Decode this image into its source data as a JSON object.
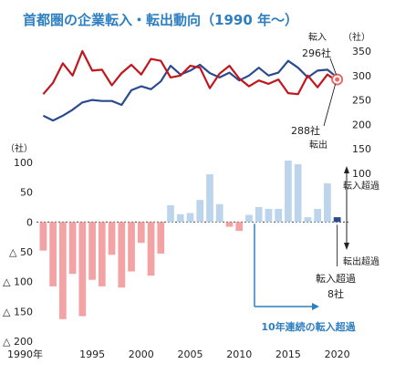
{
  "chart_data": {
    "type": "line+bar",
    "title": "首都圏の企業転入・転出動向（1990 年～）",
    "x": [
      1990,
      1991,
      1992,
      1993,
      1994,
      1995,
      1996,
      1997,
      1998,
      1999,
      2000,
      2001,
      2002,
      2003,
      2004,
      2005,
      2006,
      2007,
      2008,
      2009,
      2010,
      2011,
      2012,
      2013,
      2014,
      2015,
      2016,
      2017,
      2018,
      2019,
      2020
    ],
    "x_tick_labels": [
      "1990年",
      "1995",
      "2000",
      "2005",
      "2010",
      "2015",
      "2020"
    ],
    "x_tick_values": [
      1990,
      1995,
      2000,
      2005,
      2010,
      2015,
      2020
    ],
    "upper_axis": {
      "unit": "（社）",
      "ticks": [
        "100",
        "150",
        "200",
        "250",
        "300",
        "350"
      ],
      "tick_values": [
        100,
        150,
        200,
        250,
        300,
        350
      ],
      "ylim": [
        100,
        350
      ]
    },
    "lower_axis": {
      "unit": "（社）",
      "ticks": [
        "100",
        "50",
        "0",
        "△ 50",
        "△ 100",
        "△ 150",
        "△ 200"
      ],
      "tick_values": [
        100,
        50,
        0,
        -50,
        -100,
        -150,
        -200
      ],
      "ylim": [
        -200,
        100
      ]
    },
    "series": [
      {
        "name": "転入",
        "kind": "line",
        "axis": "upper",
        "color": "#2b4a8e",
        "values": [
          218,
          208,
          218,
          230,
          245,
          250,
          248,
          248,
          240,
          270,
          278,
          272,
          288,
          320,
          302,
          310,
          322,
          305,
          296,
          306,
          290,
          300,
          316,
          300,
          306,
          330,
          316,
          296,
          310,
          312,
          296
        ]
      },
      {
        "name": "転出",
        "kind": "line",
        "axis": "upper",
        "color": "#c0161c",
        "values": [
          262,
          285,
          325,
          300,
          350,
          310,
          312,
          280,
          305,
          322,
          302,
          334,
          330,
          296,
          300,
          320,
          316,
          274,
          304,
          320,
          294,
          278,
          290,
          283,
          292,
          264,
          262,
          300,
          276,
          302,
          288
        ]
      },
      {
        "name": "転入超過",
        "kind": "bar",
        "axis": "lower",
        "values": [
          -48,
          -108,
          -163,
          -87,
          -158,
          -97,
          -108,
          -55,
          -110,
          -83,
          -35,
          -90,
          -53,
          28,
          13,
          15,
          37,
          80,
          30,
          -8,
          -15,
          12,
          25,
          22,
          22,
          103,
          97,
          8,
          22,
          65,
          8
        ]
      }
    ],
    "bar_colors": {
      "positive": "#bcd5ec",
      "negative": "#f4a3a5",
      "highlight": "#2b4a8e"
    },
    "annotations": {
      "inflow_label": "転入",
      "inflow_value": "296社",
      "outflow_label": "転出",
      "outflow_value": "288社",
      "net_in_label": "転入超過",
      "net_out_label": "転出超過",
      "latest_label": "転入超過",
      "latest_value": "8社",
      "streak_label": "10年連続の転入超過"
    },
    "colors": {
      "arrow": "#2e7fc2",
      "streak_text": "#2e7fc2",
      "title": "#2e7fc2",
      "marker": "#e56b6b"
    }
  }
}
